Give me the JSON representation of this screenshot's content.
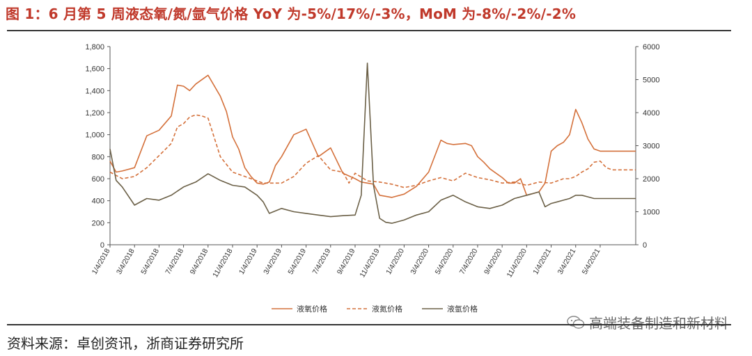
{
  "title": "图 1：6 月第 5 周液态氧/氮/氩气价格 YoY 为-5%/17%/-3%，MoM 为-8%/-2%/-2%",
  "source": "资料来源：卓创资讯，浙商证券研究所",
  "watermark": "高端装备制造和新材料",
  "chart_data": {
    "type": "line",
    "x_tick_labels": [
      "1/4/2018",
      "3/4/2018",
      "5/4/2018",
      "7/4/2018",
      "9/4/2018",
      "11/4/2018",
      "1/4/2019",
      "3/4/2019",
      "5/4/2019",
      "7/4/2019",
      "9/4/2019",
      "11/4/2019",
      "1/4/2020",
      "3/4/2020",
      "5/4/2020",
      "7/4/2020",
      "9/4/2020",
      "11/4/2020",
      "1/4/2021",
      "3/4/2021",
      "5/4/2021"
    ],
    "x_range_months": [
      0,
      42.9
    ],
    "y_left": {
      "ylim": [
        0,
        1800
      ],
      "ticks": [
        "0",
        "200",
        "400",
        "600",
        "800",
        "1,000",
        "1,200",
        "1,400",
        "1,600",
        "1,800"
      ],
      "tick_values": [
        0,
        200,
        400,
        600,
        800,
        1000,
        1200,
        1400,
        1600,
        1800
      ]
    },
    "y_right": {
      "ylim": [
        0,
        6000
      ],
      "ticks": [
        "0",
        "1000",
        "2000",
        "3000",
        "4000",
        "5000",
        "6000"
      ],
      "tick_values": [
        0,
        1000,
        2000,
        3000,
        4000,
        5000,
        6000
      ]
    },
    "legend_position": "bottom",
    "series": [
      {
        "name": "液氧价格",
        "axis": "left",
        "color": "#d4703a",
        "dash": "solid",
        "x": [
          0,
          0.5,
          1,
          2,
          3,
          4,
          5,
          5.5,
          6,
          6.5,
          7,
          8,
          9,
          9.5,
          10,
          10.5,
          11,
          11.5,
          12,
          12.5,
          13,
          13.5,
          14,
          15,
          16,
          17,
          18,
          19,
          20,
          20.5,
          21,
          21.5,
          22,
          23,
          24,
          25,
          26,
          27,
          27.5,
          28,
          29,
          29.5,
          30,
          30.5,
          31,
          32,
          32.5,
          33,
          33.5,
          34,
          35,
          35.5,
          36,
          36.5,
          37,
          37.5,
          38,
          38.5,
          39,
          39.5,
          40,
          40.5,
          41,
          41.5,
          42,
          42.5,
          42.9
        ],
        "values": [
          760,
          660,
          670,
          700,
          990,
          1040,
          1170,
          1450,
          1440,
          1400,
          1460,
          1540,
          1350,
          1210,
          980,
          870,
          700,
          620,
          560,
          550,
          570,
          720,
          800,
          1000,
          1050,
          800,
          880,
          650,
          600,
          570,
          560,
          550,
          450,
          430,
          460,
          530,
          660,
          950,
          920,
          910,
          920,
          900,
          800,
          750,
          690,
          610,
          560,
          560,
          600,
          450,
          480,
          560,
          850,
          900,
          930,
          1000,
          1230,
          1110,
          960,
          870,
          850,
          850,
          850,
          850,
          850,
          850,
          850
        ]
      },
      {
        "name": "液氮价格",
        "axis": "left",
        "color": "#d4703a",
        "dash": "dashed",
        "x": [
          0,
          1,
          2,
          3,
          4,
          5,
          5.5,
          6,
          6.5,
          7,
          7.5,
          8,
          9,
          10,
          11,
          12,
          12.5,
          13,
          14,
          15,
          16,
          17,
          18,
          19,
          19.5,
          20,
          21,
          22,
          23,
          24,
          25,
          26,
          27,
          28,
          29,
          30,
          31,
          32,
          33,
          34,
          35,
          36,
          37,
          37.5,
          38,
          38.5,
          39,
          39.5,
          40,
          40.5,
          41,
          41.5,
          42,
          42.5,
          42.9
        ],
        "values": [
          660,
          600,
          620,
          700,
          810,
          920,
          1070,
          1100,
          1160,
          1180,
          1170,
          1150,
          800,
          660,
          620,
          580,
          560,
          560,
          560,
          620,
          740,
          810,
          680,
          660,
          560,
          650,
          580,
          570,
          550,
          520,
          540,
          580,
          610,
          580,
          650,
          610,
          590,
          560,
          570,
          540,
          570,
          560,
          600,
          600,
          620,
          660,
          690,
          750,
          760,
          700,
          680,
          680,
          680,
          680,
          680
        ]
      },
      {
        "name": "液氩价格",
        "axis": "right",
        "color": "#6b6047",
        "dash": "solid",
        "x": [
          0,
          0.5,
          1,
          2,
          3,
          4,
          5,
          6,
          7,
          8,
          9,
          10,
          11,
          12,
          12.5,
          13,
          14,
          15,
          16,
          17,
          18,
          19,
          20,
          20.5,
          21,
          21.5,
          22,
          22.5,
          23,
          24,
          25,
          26,
          27,
          28,
          29,
          30,
          31,
          32,
          33,
          34,
          35,
          35.5,
          36,
          36.5,
          37,
          37.5,
          38,
          38.5,
          39,
          39.5,
          40,
          40.5,
          41,
          41.5,
          42,
          42.5,
          42.9
        ],
        "values": [
          2900,
          1950,
          1750,
          1200,
          1400,
          1350,
          1500,
          1750,
          1900,
          2150,
          1950,
          1800,
          1750,
          1500,
          1300,
          950,
          1100,
          1000,
          950,
          900,
          850,
          880,
          900,
          1500,
          5500,
          1800,
          800,
          680,
          650,
          750,
          900,
          1000,
          1350,
          1500,
          1300,
          1150,
          1100,
          1200,
          1400,
          1500,
          1600,
          1150,
          1250,
          1300,
          1350,
          1400,
          1500,
          1500,
          1450,
          1400,
          1400,
          1400,
          1400,
          1400,
          1400,
          1400,
          1400
        ]
      }
    ]
  }
}
